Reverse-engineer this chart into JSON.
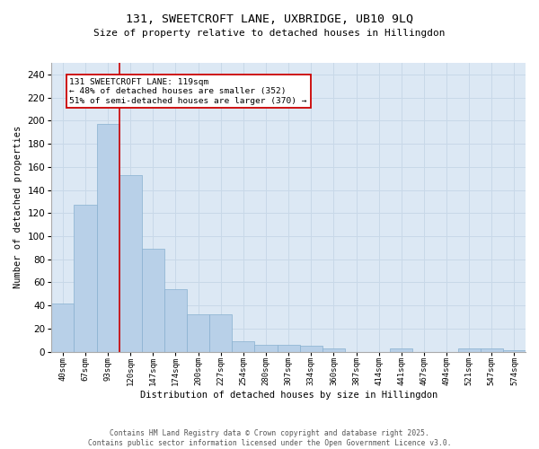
{
  "title_line1": "131, SWEETCROFT LANE, UXBRIDGE, UB10 9LQ",
  "title_line2": "Size of property relative to detached houses in Hillingdon",
  "xlabel": "Distribution of detached houses by size in Hillingdon",
  "ylabel": "Number of detached properties",
  "categories": [
    "40sqm",
    "67sqm",
    "93sqm",
    "120sqm",
    "147sqm",
    "174sqm",
    "200sqm",
    "227sqm",
    "254sqm",
    "280sqm",
    "307sqm",
    "334sqm",
    "360sqm",
    "387sqm",
    "414sqm",
    "441sqm",
    "467sqm",
    "494sqm",
    "521sqm",
    "547sqm",
    "574sqm"
  ],
  "values": [
    42,
    127,
    197,
    153,
    89,
    54,
    32,
    32,
    9,
    6,
    6,
    5,
    3,
    0,
    0,
    3,
    0,
    0,
    3,
    3,
    1
  ],
  "bar_color": "#b8d0e8",
  "bar_edgecolor": "#88b0d0",
  "vline_x": 2.5,
  "vline_color": "#cc0000",
  "annotation_text": "131 SWEETCROFT LANE: 119sqm\n← 48% of detached houses are smaller (352)\n51% of semi-detached houses are larger (370) →",
  "annotation_box_facecolor": "#ffffff",
  "annotation_box_edgecolor": "#cc0000",
  "ylim": [
    0,
    250
  ],
  "yticks": [
    0,
    20,
    40,
    60,
    80,
    100,
    120,
    140,
    160,
    180,
    200,
    220,
    240
  ],
  "grid_color": "#c8d8e8",
  "plot_bg": "#dce8f4",
  "fig_bg": "#ffffff",
  "footer_text": "Contains HM Land Registry data © Crown copyright and database right 2025.\nContains public sector information licensed under the Open Government Licence v3.0.",
  "fig_width": 6.0,
  "fig_height": 5.0,
  "dpi": 100
}
